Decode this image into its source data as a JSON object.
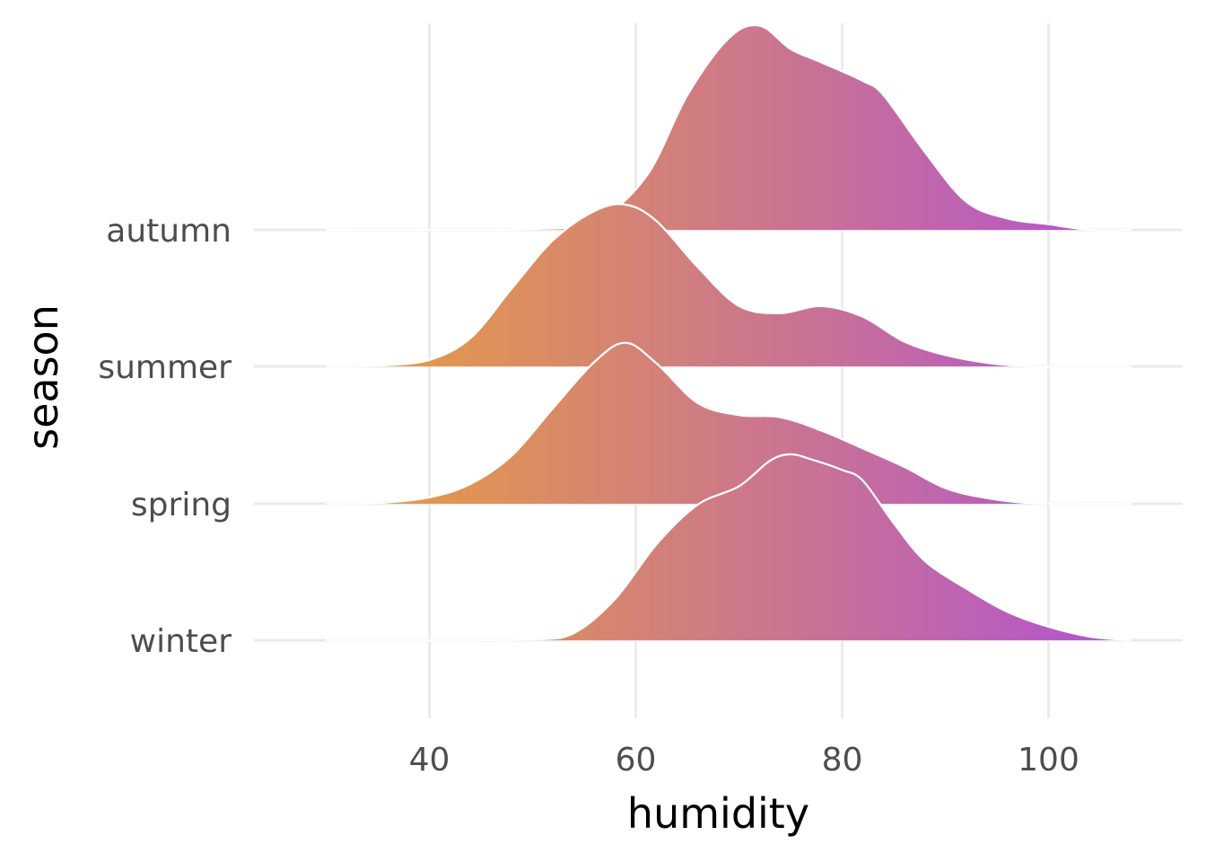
{
  "chart_data": {
    "type": "ridgeline",
    "xlabel": "humidity",
    "ylabel": "season",
    "xlim": [
      23,
      113
    ],
    "x_ticks": [
      40,
      60,
      80,
      100
    ],
    "categories": [
      "winter",
      "spring",
      "summer",
      "autumn"
    ],
    "grid": true,
    "legend": "none",
    "fill_gradient": {
      "low_color": "#e9a13b",
      "high_color": "#b150d6",
      "low_x": 30,
      "high_x": 110
    },
    "outline_color": "#ffffff",
    "series": [
      {
        "name": "autumn",
        "x": [
          30,
          40,
          50,
          56,
          61,
          65,
          69,
          72,
          75,
          78,
          82,
          84,
          88,
          92,
          96,
          100,
          104,
          108
        ],
        "density": [
          0,
          0,
          0.001,
          0.012,
          0.075,
          0.19,
          0.27,
          0.288,
          0.255,
          0.236,
          0.21,
          0.19,
          0.11,
          0.04,
          0.016,
          0.008,
          0,
          0
        ]
      },
      {
        "name": "summer",
        "x": [
          30,
          35,
          40,
          44,
          48,
          52,
          56,
          59,
          62,
          66,
          70,
          74,
          78,
          82,
          86,
          90,
          94,
          98,
          102,
          108
        ],
        "density": [
          0,
          0.001,
          0.009,
          0.04,
          0.11,
          0.178,
          0.219,
          0.228,
          0.205,
          0.14,
          0.085,
          0.075,
          0.085,
          0.07,
          0.035,
          0.016,
          0.005,
          0,
          0,
          0
        ]
      },
      {
        "name": "spring",
        "x": [
          30,
          35,
          40,
          44,
          48,
          52,
          56,
          59,
          62,
          66,
          70,
          74,
          78,
          82,
          86,
          90,
          94,
          98,
          102,
          108
        ],
        "density": [
          0,
          0.001,
          0.009,
          0.028,
          0.068,
          0.135,
          0.2,
          0.227,
          0.198,
          0.142,
          0.125,
          0.122,
          0.103,
          0.078,
          0.052,
          0.022,
          0.008,
          0.001,
          0,
          0
        ]
      },
      {
        "name": "winter",
        "x": [
          30,
          40,
          50,
          54,
          58,
          62,
          66,
          70,
          73,
          75,
          77,
          80,
          82,
          85,
          88,
          92,
          96,
          100,
          104,
          108
        ],
        "density": [
          0,
          0,
          0.001,
          0.01,
          0.058,
          0.135,
          0.191,
          0.217,
          0.253,
          0.262,
          0.255,
          0.24,
          0.225,
          0.165,
          0.112,
          0.073,
          0.04,
          0.019,
          0.005,
          0
        ]
      }
    ]
  }
}
